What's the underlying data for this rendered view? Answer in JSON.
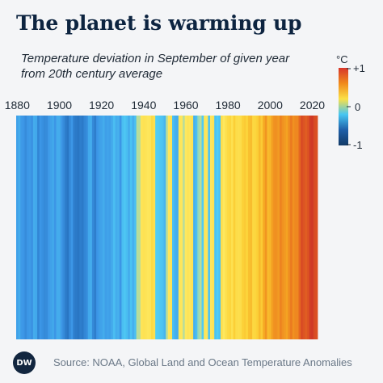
{
  "header": {
    "title": "The planet is warming up",
    "subtitle": "Temperature deviation in September of given year\nfrom 20th century average"
  },
  "footer": {
    "source": "Source: NOAA, Global Land and Ocean Temperature Anomalies",
    "logo_text": "DW"
  },
  "legend": {
    "unit": "°C",
    "max_label": "+1",
    "mid_label": "0",
    "min_label": "-1",
    "colors": [
      "#d7362b",
      "#f08a1c",
      "#fbe046",
      "#47c6f2",
      "#1f5fa8",
      "#123a66"
    ]
  },
  "chart_data": {
    "type": "heatmap",
    "title": "The planet is warming up",
    "subtitle": "Temperature deviation in September of given year from 20th century average",
    "unit": "°C",
    "xlabel": "",
    "ylabel": "",
    "x_ticks": [
      1880,
      1900,
      1920,
      1940,
      1960,
      1980,
      2000,
      2020
    ],
    "color_range": [
      -1,
      1
    ],
    "years": [
      1880,
      1881,
      1882,
      1883,
      1884,
      1885,
      1886,
      1887,
      1888,
      1889,
      1890,
      1891,
      1892,
      1893,
      1894,
      1895,
      1896,
      1897,
      1898,
      1899,
      1900,
      1901,
      1902,
      1903,
      1904,
      1905,
      1906,
      1907,
      1908,
      1909,
      1910,
      1911,
      1912,
      1913,
      1914,
      1915,
      1916,
      1917,
      1918,
      1919,
      1920,
      1921,
      1922,
      1923,
      1924,
      1925,
      1926,
      1927,
      1928,
      1929,
      1930,
      1931,
      1932,
      1933,
      1934,
      1935,
      1936,
      1937,
      1938,
      1939,
      1940,
      1941,
      1942,
      1943,
      1944,
      1945,
      1946,
      1947,
      1948,
      1949,
      1950,
      1951,
      1952,
      1953,
      1954,
      1955,
      1956,
      1957,
      1958,
      1959,
      1960,
      1961,
      1962,
      1963,
      1964,
      1965,
      1966,
      1967,
      1968,
      1969,
      1970,
      1971,
      1972,
      1973,
      1974,
      1975,
      1976,
      1977,
      1978,
      1979,
      1980,
      1981,
      1982,
      1983,
      1984,
      1985,
      1986,
      1987,
      1988,
      1989,
      1990,
      1991,
      1992,
      1993,
      1994,
      1995,
      1996,
      1997,
      1998,
      1999,
      2000,
      2001,
      2002,
      2003,
      2004,
      2005,
      2006,
      2007,
      2008,
      2009,
      2010,
      2011,
      2012,
      2013,
      2014,
      2015,
      2016,
      2017,
      2018,
      2019,
      2020,
      2021,
      2022
    ],
    "values": [
      -0.25,
      -0.2,
      -0.28,
      -0.3,
      -0.35,
      -0.3,
      -0.28,
      -0.32,
      -0.2,
      -0.22,
      -0.38,
      -0.3,
      -0.33,
      -0.36,
      -0.35,
      -0.28,
      -0.25,
      -0.22,
      -0.3,
      -0.2,
      -0.2,
      -0.28,
      -0.35,
      -0.42,
      -0.46,
      -0.36,
      -0.3,
      -0.42,
      -0.44,
      -0.46,
      -0.42,
      -0.44,
      -0.38,
      -0.35,
      -0.22,
      -0.2,
      -0.36,
      -0.42,
      -0.3,
      -0.26,
      -0.24,
      -0.2,
      -0.26,
      -0.24,
      -0.26,
      -0.2,
      -0.12,
      -0.2,
      -0.18,
      -0.3,
      -0.12,
      -0.08,
      -0.12,
      -0.2,
      -0.1,
      -0.18,
      -0.12,
      -0.02,
      -0.02,
      0.05,
      0.08,
      0.06,
      0.02,
      0.04,
      0.18,
      0.1,
      -0.05,
      -0.06,
      -0.08,
      -0.1,
      -0.16,
      -0.02,
      0.02,
      0.06,
      -0.12,
      -0.18,
      -0.2,
      0.05,
      0.02,
      -0.02,
      0.0,
      0.05,
      0.02,
      0.08,
      -0.18,
      -0.12,
      -0.03,
      -0.02,
      -0.06,
      0.04,
      0.02,
      -0.1,
      0.02,
      0.08,
      -0.1,
      -0.05,
      -0.1,
      0.12,
      0.0,
      0.1,
      0.18,
      0.22,
      0.1,
      0.28,
      0.14,
      0.12,
      0.14,
      0.26,
      0.3,
      0.24,
      0.36,
      0.38,
      0.2,
      0.22,
      0.28,
      0.4,
      0.3,
      0.48,
      0.58,
      0.4,
      0.42,
      0.54,
      0.6,
      0.6,
      0.56,
      0.66,
      0.6,
      0.56,
      0.52,
      0.62,
      0.7,
      0.6,
      0.64,
      0.64,
      0.78,
      0.9,
      0.86,
      0.82,
      0.86,
      0.96,
      0.98,
      0.9,
      0.88
    ]
  }
}
